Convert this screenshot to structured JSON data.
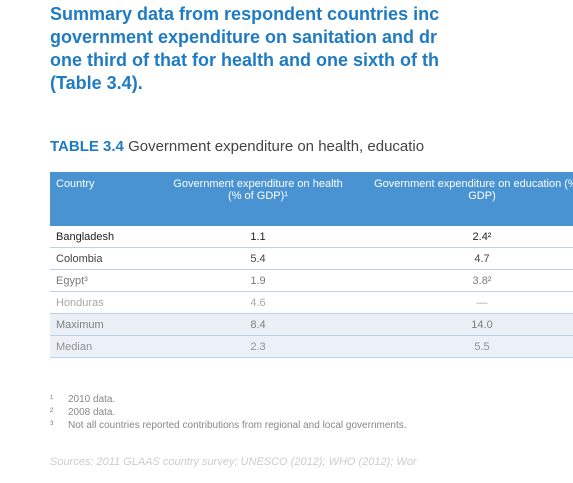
{
  "heading": {
    "lines": [
      "Summary data from respondent countries inc",
      "government expenditure on sanitation and dr",
      "one third of that for health and one sixth of th",
      "(Table 3.4)."
    ]
  },
  "table": {
    "caption_label": "TABLE 3.4",
    "caption_text": "Government expenditure on health, educatio",
    "header": [
      "Country",
      "Government expenditure on health (% of GDP)¹",
      "Government expenditure on education (% of GDP)"
    ],
    "rows": [
      [
        "Bangladesh",
        "1.1",
        "2.4²"
      ],
      [
        "Colombia",
        "5.4",
        "4.7"
      ],
      [
        "Egypt³",
        "1.9",
        "3.8²"
      ],
      [
        "Honduras",
        "4.6",
        "—"
      ]
    ],
    "summary_rows": [
      [
        "Maximum",
        "8.4",
        "14.0"
      ],
      [
        "Median",
        "2.3",
        "5.5"
      ]
    ]
  },
  "footnotes": [
    {
      "mark": "¹",
      "text": "2010 data."
    },
    {
      "mark": "²",
      "text": "2008 data."
    },
    {
      "mark": "³",
      "text": "Not all countries reported contributions from regional and local governments."
    }
  ],
  "sources": "Sources: 2011 GLAAS country survey; UNESCO (2012); WHO (2012); Wor"
}
